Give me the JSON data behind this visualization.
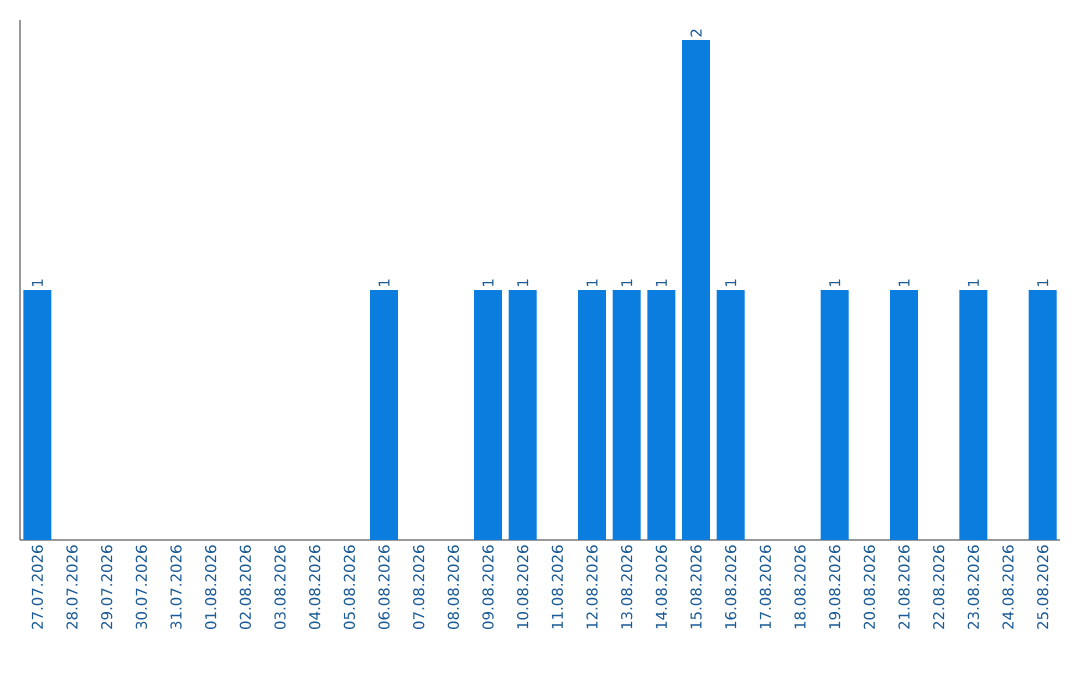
{
  "chart_data": {
    "type": "bar",
    "categories": [
      "27.07.2026",
      "28.07.2026",
      "29.07.2026",
      "30.07.2026",
      "31.07.2026",
      "01.08.2026",
      "02.08.2026",
      "03.08.2026",
      "04.08.2026",
      "05.08.2026",
      "06.08.2026",
      "07.08.2026",
      "08.08.2026",
      "09.08.2026",
      "10.08.2026",
      "11.08.2026",
      "12.08.2026",
      "13.08.2026",
      "14.08.2026",
      "15.08.2026",
      "16.08.2026",
      "17.08.2026",
      "18.08.2026",
      "19.08.2026",
      "20.08.2026",
      "21.08.2026",
      "22.08.2026",
      "23.08.2026",
      "24.08.2026",
      "25.08.2026"
    ],
    "values": [
      1,
      0,
      0,
      0,
      0,
      0,
      0,
      0,
      0,
      0,
      1,
      0,
      0,
      1,
      1,
      0,
      1,
      1,
      1,
      2,
      1,
      0,
      0,
      1,
      0,
      1,
      0,
      1,
      0,
      1
    ],
    "value_labels": [
      "1",
      null,
      null,
      null,
      null,
      null,
      null,
      null,
      null,
      null,
      "1",
      null,
      null,
      "1",
      "1",
      null,
      "1",
      "1",
      "1",
      "2",
      "1",
      null,
      null,
      "1",
      null,
      "1",
      null,
      "1",
      null,
      "1"
    ],
    "color": "#0a7ddf",
    "ylim": [
      0,
      2.08
    ],
    "tick_labels": "x"
  }
}
